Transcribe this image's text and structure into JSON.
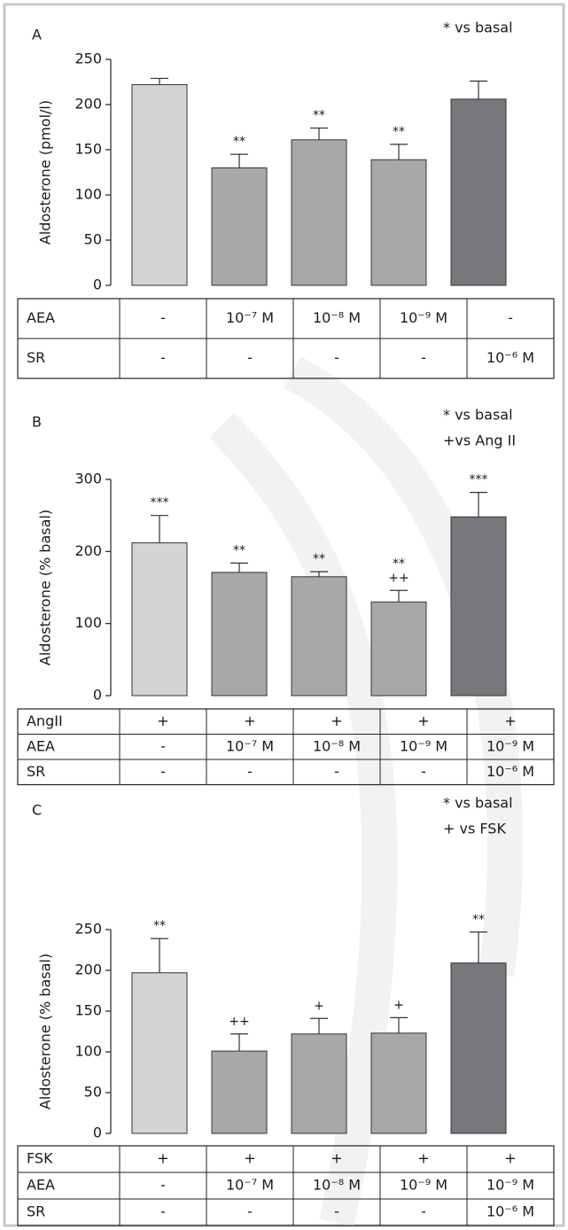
{
  "chart_data": [
    {
      "type": "bar",
      "panel_label": "A",
      "notes": [
        "* vs basal"
      ],
      "y_label": "Aldosterone (pmol/l)",
      "ylim": [
        0,
        250
      ],
      "yticks": [
        0,
        50,
        100,
        150,
        200,
        250
      ],
      "values": [
        222,
        130,
        161,
        139,
        206
      ],
      "errors": [
        7,
        15,
        13,
        17,
        20
      ],
      "colors": [
        "#d3d4d6",
        "#a7a8aa",
        "#a7a8aa",
        "#a7a8aa",
        "#77787b"
      ],
      "annotations": [
        null,
        [
          "**"
        ],
        [
          "**"
        ],
        [
          "**"
        ],
        null
      ],
      "table": {
        "rows": [
          {
            "label": "AEA",
            "cells": [
              "-",
              "10⁻⁷ M",
              "10⁻⁸ M",
              "10⁻⁹ M",
              "-"
            ]
          },
          {
            "label": "SR",
            "cells": [
              "-",
              "-",
              "-",
              "-",
              "10⁻⁶ M"
            ]
          }
        ]
      }
    },
    {
      "type": "bar",
      "panel_label": "B",
      "notes": [
        "* vs basal",
        "+vs Ang II"
      ],
      "y_label": "Aldosterone  (% basal)",
      "ylim": [
        0,
        300
      ],
      "yticks": [
        0,
        100,
        200,
        300
      ],
      "values": [
        212,
        171,
        165,
        130,
        248
      ],
      "errors": [
        38,
        13,
        7,
        16,
        34
      ],
      "colors": [
        "#d3d4d6",
        "#a7a8aa",
        "#a7a8aa",
        "#a7a8aa",
        "#77787b"
      ],
      "annotations": [
        [
          "***"
        ],
        [
          "**"
        ],
        [
          "**"
        ],
        [
          "**",
          "++"
        ],
        [
          "***"
        ]
      ],
      "table": {
        "rows": [
          {
            "label": "AngII",
            "cells": [
              "+",
              "+",
              "+",
              "+",
              "+"
            ]
          },
          {
            "label": "AEA",
            "cells": [
              "-",
              "10⁻⁷ M",
              "10⁻⁸ M",
              "10⁻⁹ M",
              "10⁻⁹ M"
            ]
          },
          {
            "label": "SR",
            "cells": [
              "-",
              "-",
              "-",
              "-",
              "10⁻⁶ M"
            ]
          }
        ]
      }
    },
    {
      "type": "bar",
      "panel_label": "C",
      "notes": [
        "* vs basal",
        "+ vs FSK"
      ],
      "y_label": "Aldosterone (% basal)",
      "ylim": [
        0,
        250
      ],
      "yticks": [
        0,
        50,
        100,
        150,
        200,
        250
      ],
      "values": [
        197,
        101,
        122,
        123,
        209
      ],
      "errors": [
        42,
        21,
        19,
        19,
        38
      ],
      "colors": [
        "#d3d4d6",
        "#a7a8aa",
        "#a7a8aa",
        "#a7a8aa",
        "#77787b"
      ],
      "annotations": [
        [
          "**"
        ],
        [
          "++"
        ],
        [
          "+"
        ],
        [
          "+"
        ],
        [
          "**"
        ]
      ],
      "table": {
        "rows": [
          {
            "label": "FSK",
            "cells": [
              "+",
              "+",
              "+",
              "+",
              "+"
            ]
          },
          {
            "label": "AEA",
            "cells": [
              "-",
              "10⁻⁷ M",
              "10⁻⁸ M",
              "10⁻⁹ M",
              "10⁻⁹ M"
            ]
          },
          {
            "label": "SR",
            "cells": [
              "-",
              "-",
              "-",
              "-",
              "10⁻⁶ M"
            ]
          }
        ]
      }
    }
  ]
}
